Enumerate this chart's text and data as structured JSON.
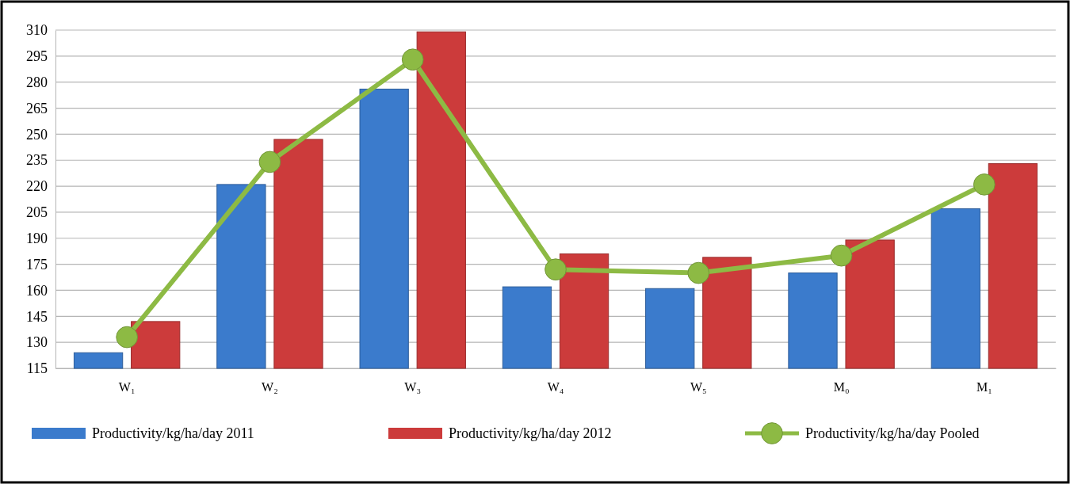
{
  "chart_data": {
    "type": "bar",
    "categories": [
      "W₁",
      "W₂",
      "W₃",
      "W₄",
      "W₅",
      "M₀",
      "M₁"
    ],
    "series": [
      {
        "name": "Productivity/kg/ha/day 2011",
        "color": "#3b7bcc",
        "values": [
          124,
          221,
          276,
          162,
          161,
          170,
          207
        ]
      },
      {
        "name": "Productivity/kg/ha/day 2012",
        "color": "#cc3b3b",
        "values": [
          142,
          247,
          309,
          181,
          179,
          189,
          233
        ]
      },
      {
        "name": "Productivity/kg/ha/day Pooled",
        "type": "line",
        "color": "#8dba44",
        "values": [
          133,
          234,
          293,
          172,
          170,
          180,
          221
        ]
      }
    ],
    "ylim": [
      115,
      310
    ],
    "yticks": [
      115,
      130,
      145,
      160,
      175,
      190,
      205,
      220,
      235,
      250,
      265,
      280,
      295,
      310
    ],
    "grid": "y",
    "legend": "bottom",
    "marker": "circle"
  }
}
